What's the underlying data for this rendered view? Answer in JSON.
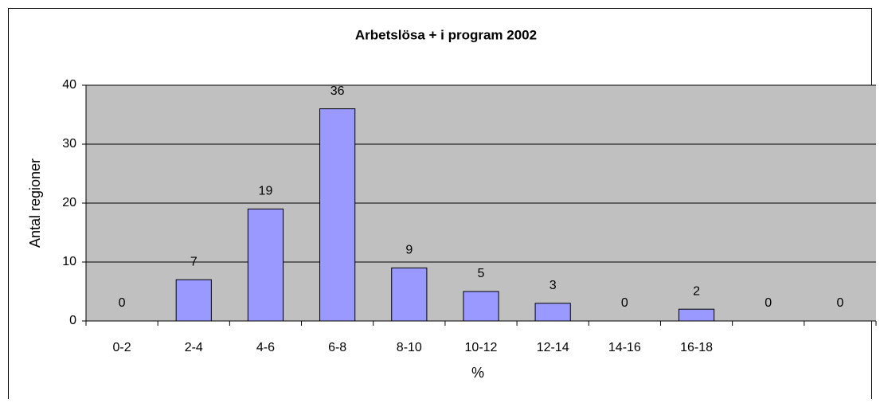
{
  "chart_data": {
    "type": "bar",
    "title": "Arbetslösa + i program 2002",
    "x_label": "%",
    "y_label": "Antal regioner",
    "categories": [
      "0-2",
      "2-4",
      "4-6",
      "6-8",
      "8-10",
      "10-12",
      "12-14",
      "14-16",
      "16-18",
      null,
      null
    ],
    "values": [
      0,
      7,
      19,
      36,
      9,
      5,
      3,
      0,
      2,
      0,
      0
    ],
    "color": "#9999ff",
    "plot_background": "#c0c0c0",
    "ylim": [
      0,
      40
    ],
    "yticks": [
      0,
      10,
      20,
      30,
      40
    ],
    "grid": true
  }
}
